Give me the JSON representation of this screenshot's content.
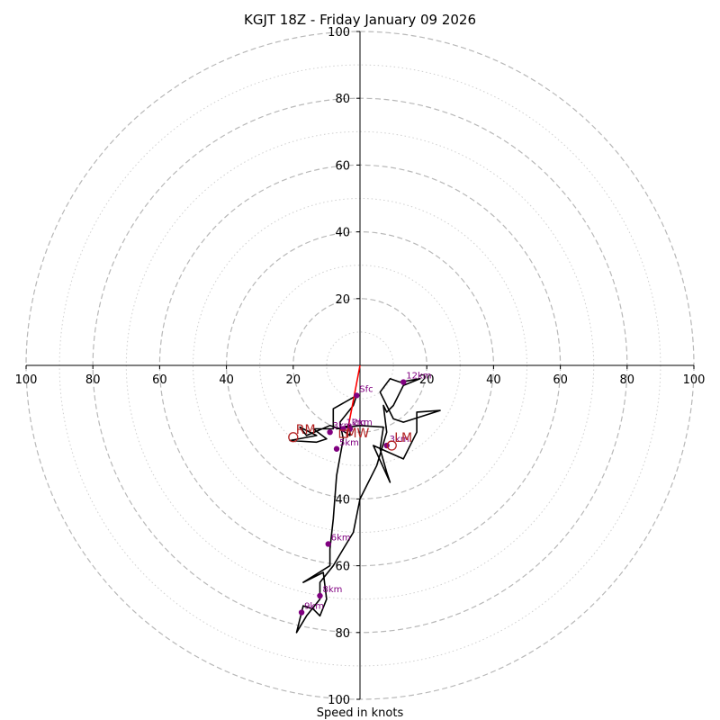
{
  "chart_data": {
    "type": "hodograph",
    "title": "KGJT 18Z - Friday January 09 2026",
    "xlabel": "Speed in knots",
    "range": [
      -100,
      100
    ],
    "ring_major": [
      20,
      40,
      60,
      80,
      100
    ],
    "ring_minor": [
      10,
      30,
      50,
      70,
      90
    ],
    "tick_labels": {
      "x": [
        {
          "v": -100,
          "t": "100"
        },
        {
          "v": -80,
          "t": "80"
        },
        {
          "v": -60,
          "t": "60"
        },
        {
          "v": -40,
          "t": "40"
        },
        {
          "v": -20,
          "t": "20"
        },
        {
          "v": 20,
          "t": "20"
        },
        {
          "v": 40,
          "t": "40"
        },
        {
          "v": 60,
          "t": "60"
        },
        {
          "v": 80,
          "t": "80"
        },
        {
          "v": 100,
          "t": "100"
        }
      ],
      "y": [
        {
          "v": 100,
          "t": "100"
        },
        {
          "v": 80,
          "t": "80"
        },
        {
          "v": 60,
          "t": "60"
        },
        {
          "v": 40,
          "t": "40"
        },
        {
          "v": 20,
          "t": "20"
        },
        {
          "v": -40,
          "t": "40"
        },
        {
          "v": -60,
          "t": "60"
        },
        {
          "v": -80,
          "t": "80"
        },
        {
          "v": -100,
          "t": "100"
        }
      ]
    },
    "hodograph_trace": [
      [
        -1,
        -9
      ],
      [
        -8,
        -13
      ],
      [
        -8,
        -19
      ],
      [
        -14,
        -19
      ],
      [
        -10,
        -22
      ],
      [
        -13,
        -23
      ],
      [
        -21,
        -22.5
      ],
      [
        -13,
        -21
      ],
      [
        -18,
        -18.5
      ],
      [
        -16,
        -21
      ],
      [
        -9,
        -18
      ],
      [
        -6,
        -19
      ],
      [
        -3,
        -21
      ],
      [
        -3,
        -18
      ],
      [
        -7,
        -19
      ],
      [
        0,
        -18
      ],
      [
        7,
        -18.5
      ],
      [
        6,
        -25
      ],
      [
        8,
        -32
      ],
      [
        9,
        -35
      ],
      [
        4,
        -24
      ],
      [
        13,
        -28
      ],
      [
        17,
        -20
      ],
      [
        17,
        -14
      ],
      [
        24,
        -13.5
      ],
      [
        13,
        -17
      ],
      [
        10,
        -16
      ],
      [
        6,
        -8
      ],
      [
        9,
        -4
      ],
      [
        12,
        -5
      ],
      [
        18,
        -4
      ],
      [
        13,
        -6
      ],
      [
        10,
        -12
      ],
      [
        8,
        -14
      ],
      [
        7,
        -12
      ],
      [
        8,
        -20
      ],
      [
        5,
        -30
      ],
      [
        0,
        -40
      ],
      [
        -2,
        -50
      ],
      [
        -5,
        -55
      ],
      [
        -8,
        -60
      ],
      [
        -12,
        -65
      ],
      [
        -12,
        -70
      ],
      [
        -16,
        -75
      ],
      [
        -19,
        -80
      ],
      [
        -17,
        -72
      ],
      [
        -14,
        -73
      ],
      [
        -12,
        -75
      ],
      [
        -10,
        -70
      ],
      [
        -11,
        -62
      ],
      [
        -17,
        -65
      ],
      [
        -9,
        -60
      ],
      [
        -9,
        -55
      ],
      [
        -8,
        -46
      ],
      [
        -7,
        -33
      ],
      [
        -5,
        -22
      ],
      [
        -6,
        -17
      ],
      [
        -2,
        -12
      ],
      [
        -1,
        -9
      ]
    ],
    "height_labels": [
      {
        "label": "Sfc",
        "x": -1,
        "y": -9
      },
      {
        "label": "1km",
        "x": -5,
        "y": -19
      },
      {
        "label": "2km",
        "x": -3,
        "y": -19
      },
      {
        "label": "3km",
        "x": -9,
        "y": -20
      },
      {
        "label": "3km",
        "x": 8,
        "y": -24
      },
      {
        "label": "5km",
        "x": -7,
        "y": -25
      },
      {
        "label": "6km",
        "x": -9.5,
        "y": -53.5
      },
      {
        "label": "8km",
        "x": -12,
        "y": -69
      },
      {
        "label": "9km",
        "x": -17.5,
        "y": -74
      },
      {
        "label": "12km",
        "x": 13,
        "y": -5
      }
    ],
    "storm_motion": [
      {
        "label": "RM",
        "x": -20,
        "y": -21.5
      },
      {
        "label": "LM",
        "x": 9.5,
        "y": -24
      }
    ],
    "mean_wind": {
      "label": "MW",
      "x": -5,
      "y": -20.5
    },
    "shear_vector": {
      "from": [
        0,
        0
      ],
      "to": [
        -4,
        -21
      ]
    },
    "colors": {
      "trace": "#000000",
      "markers": "#800080",
      "shear": "#ff0000",
      "storm": "#b22222",
      "grid": "#b8b8b8",
      "axis": "#000000"
    }
  }
}
